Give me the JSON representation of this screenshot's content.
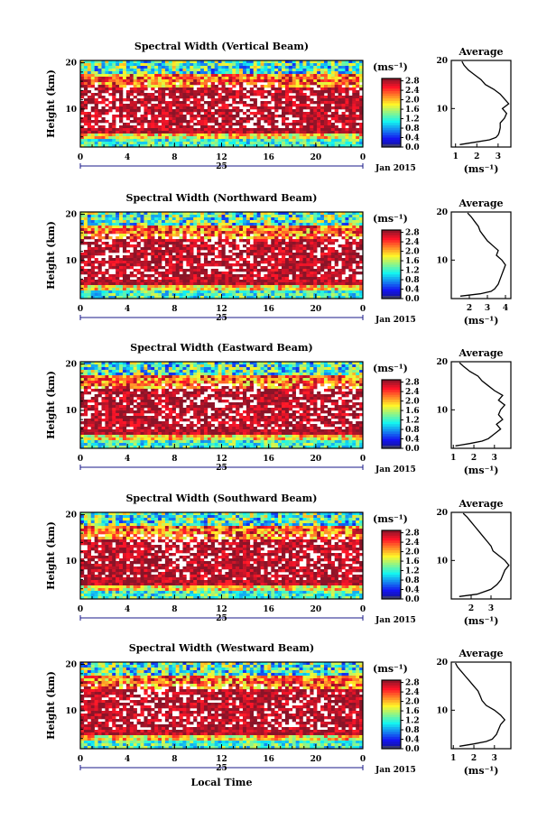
{
  "chart_data": [
    {
      "type": "heatmap",
      "title": "Spectral Width (Vertical Beam)",
      "ylabel": "Height (km)",
      "y_ticks": [
        "10",
        "20"
      ],
      "x_ticks": [
        "0",
        "4",
        "8",
        "12",
        "16",
        "20",
        "0"
      ],
      "day_label": "25",
      "date_label": "Jan 2015",
      "colorbar": {
        "unit": "(ms⁻¹)",
        "ticks": [
          "0.0",
          "0.4",
          "0.8",
          "1.2",
          "1.6",
          "2.0",
          "2.4",
          "2.8"
        ],
        "range": [
          0,
          2.9
        ]
      },
      "profile": {
        "title": "Average",
        "xlabel": "(ms⁻¹)",
        "x_ticks": [
          "1",
          "2",
          "3"
        ],
        "y_ticks": [
          "10",
          "20"
        ],
        "xlim": [
          0.8,
          3.6
        ],
        "ylim": [
          2,
          20
        ],
        "height_km": [
          2.5,
          3.0,
          3.5,
          4.0,
          4.5,
          5.0,
          6.0,
          7.0,
          8.0,
          9.0,
          10.0,
          11.0,
          12.0,
          13.0,
          14.0,
          15.0,
          16.0,
          17.0,
          18.0,
          19.0,
          19.8
        ],
        "average": [
          1.2,
          1.9,
          2.6,
          2.9,
          3.0,
          3.05,
          3.1,
          3.1,
          3.3,
          3.4,
          3.2,
          3.5,
          3.3,
          3.1,
          2.8,
          2.4,
          2.2,
          1.9,
          1.6,
          1.4,
          1.3
        ]
      }
    },
    {
      "type": "heatmap",
      "title": "Spectral Width (Northward Beam)",
      "ylabel": "Height (km)",
      "y_ticks": [
        "10",
        "20"
      ],
      "x_ticks": [
        "0",
        "4",
        "8",
        "12",
        "16",
        "20",
        "0"
      ],
      "day_label": "25",
      "date_label": "Jan 2015",
      "colorbar": {
        "unit": "(ms⁻¹)",
        "ticks": [
          "0.0",
          "0.4",
          "0.8",
          "1.2",
          "1.6",
          "2.0",
          "2.4",
          "2.8"
        ],
        "range": [
          0,
          2.9
        ]
      },
      "profile": {
        "title": "Average",
        "xlabel": "(ms⁻¹)",
        "x_ticks": [
          "2",
          "3",
          "4"
        ],
        "y_ticks": [
          "10",
          "20"
        ],
        "xlim": [
          1.0,
          4.3
        ],
        "ylim": [
          2,
          20
        ],
        "height_km": [
          2.5,
          3.0,
          3.5,
          4.0,
          5.0,
          6.0,
          7.0,
          8.0,
          9.0,
          10.0,
          11.0,
          12.0,
          13.0,
          14.0,
          15.0,
          16.0,
          17.0,
          18.0,
          19.0,
          19.8
        ],
        "average": [
          1.5,
          2.6,
          3.2,
          3.4,
          3.6,
          3.7,
          3.8,
          3.9,
          4.0,
          3.8,
          3.5,
          3.6,
          3.3,
          3.0,
          2.8,
          2.6,
          2.5,
          2.3,
          2.1,
          1.9
        ]
      }
    },
    {
      "type": "heatmap",
      "title": "Spectral Width (Eastward Beam)",
      "ylabel": "Height (km)",
      "y_ticks": [
        "10",
        "20"
      ],
      "x_ticks": [
        "0",
        "4",
        "8",
        "12",
        "16",
        "20",
        "0"
      ],
      "day_label": "25",
      "date_label": "Jan 2015",
      "colorbar": {
        "unit": "(ms⁻¹)",
        "ticks": [
          "0.0",
          "0.4",
          "0.8",
          "1.2",
          "1.6",
          "2.0",
          "2.4",
          "2.8"
        ],
        "range": [
          0,
          2.9
        ]
      },
      "profile": {
        "title": "Average",
        "xlabel": "(ms⁻¹)",
        "x_ticks": [
          "1",
          "2",
          "3"
        ],
        "y_ticks": [
          "10",
          "20"
        ],
        "xlim": [
          0.9,
          3.8
        ],
        "ylim": [
          2,
          20
        ],
        "height_km": [
          2.5,
          3.0,
          3.5,
          4.0,
          5.0,
          6.0,
          7.0,
          8.0,
          9.0,
          10.0,
          11.0,
          12.0,
          13.0,
          14.0,
          15.0,
          16.0,
          17.0,
          18.0,
          19.0,
          19.8
        ],
        "average": [
          1.1,
          1.8,
          2.4,
          2.7,
          3.0,
          3.3,
          3.1,
          3.4,
          3.2,
          3.3,
          3.5,
          3.2,
          3.4,
          3.0,
          2.7,
          2.4,
          2.2,
          1.8,
          1.5,
          1.3
        ]
      }
    },
    {
      "type": "heatmap",
      "title": "Spectral Width (Southward Beam)",
      "ylabel": "Height (km)",
      "y_ticks": [
        "10",
        "20"
      ],
      "x_ticks": [
        "0",
        "4",
        "8",
        "12",
        "16",
        "20",
        "0"
      ],
      "day_label": "25",
      "date_label": "Jan 2015",
      "colorbar": {
        "unit": "(ms⁻¹)",
        "ticks": [
          "0.0",
          "0.4",
          "0.8",
          "1.2",
          "1.6",
          "2.0",
          "2.4",
          "2.8"
        ],
        "range": [
          0,
          2.9
        ]
      },
      "profile": {
        "title": "Average",
        "xlabel": "(ms⁻¹)",
        "x_ticks": [
          "2",
          "3"
        ],
        "y_ticks": [
          "10",
          "20"
        ],
        "xlim": [
          1.0,
          4.0
        ],
        "ylim": [
          2,
          20
        ],
        "height_km": [
          2.5,
          3.0,
          4.0,
          5.0,
          6.0,
          7.0,
          8.0,
          9.0,
          10.0,
          11.0,
          12.0,
          13.0,
          14.0,
          15.0,
          16.0,
          17.0,
          18.0,
          19.0,
          19.8
        ],
        "average": [
          1.4,
          2.3,
          3.0,
          3.3,
          3.5,
          3.6,
          3.7,
          3.9,
          3.7,
          3.4,
          3.1,
          3.0,
          2.8,
          2.6,
          2.4,
          2.2,
          2.0,
          1.8,
          1.6
        ]
      }
    },
    {
      "type": "heatmap",
      "title": "Spectral Width (Westward Beam)",
      "ylabel": "Height (km)",
      "y_ticks": [
        "10",
        "20"
      ],
      "x_ticks": [
        "0",
        "4",
        "8",
        "12",
        "16",
        "20",
        "0"
      ],
      "day_label": "25",
      "date_label": "Jan 2015",
      "xlabel": "Local Time",
      "colorbar": {
        "unit": "(ms⁻¹)",
        "ticks": [
          "0.0",
          "0.4",
          "0.8",
          "1.2",
          "1.6",
          "2.0",
          "2.4",
          "2.8"
        ],
        "range": [
          0,
          2.9
        ]
      },
      "profile": {
        "title": "Average",
        "xlabel": "(ms⁻¹)",
        "x_ticks": [
          "1",
          "2",
          "3"
        ],
        "y_ticks": [
          "10",
          "20"
        ],
        "xlim": [
          0.9,
          3.8
        ],
        "ylim": [
          2,
          20
        ],
        "height_km": [
          2.5,
          3.0,
          3.5,
          4.0,
          5.0,
          6.0,
          7.0,
          8.0,
          9.0,
          10.0,
          11.0,
          12.0,
          13.0,
          14.0,
          15.0,
          16.0,
          17.0,
          18.0,
          19.0,
          19.8
        ],
        "average": [
          1.3,
          2.0,
          2.6,
          2.9,
          3.1,
          3.2,
          3.3,
          3.5,
          3.3,
          3.0,
          2.6,
          2.4,
          2.3,
          2.2,
          2.0,
          1.8,
          1.6,
          1.4,
          1.2,
          1.1
        ]
      }
    }
  ]
}
